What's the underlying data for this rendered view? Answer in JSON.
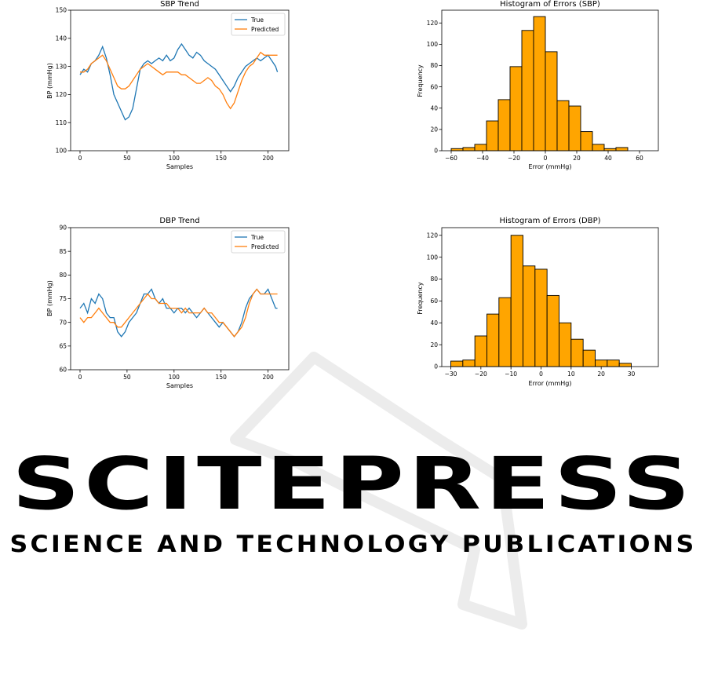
{
  "watermark": {
    "brand": "SCITEPRESS",
    "tagline": "SCIENCE AND TECHNOLOGY PUBLICATIONS",
    "color": "#e6e6e6"
  },
  "colors": {
    "true_series": "#1f77b4",
    "predicted_series": "#ff7f0e",
    "hist_bar": "#ffa500",
    "hist_edge": "#000000"
  },
  "chart_data": [
    {
      "id": "sbp-trend",
      "type": "line",
      "title": "SBP Trend",
      "xlabel": "Samples",
      "ylabel": "BP (mmHg)",
      "xlim": [
        -10,
        222
      ],
      "ylim": [
        100,
        150
      ],
      "xticks": [
        0,
        50,
        100,
        150,
        200
      ],
      "yticks": [
        100,
        110,
        120,
        130,
        140,
        150
      ],
      "legend": "top-right",
      "series": [
        {
          "name": "True",
          "color": "#1f77b4",
          "x": [
            0,
            4,
            8,
            12,
            16,
            20,
            24,
            28,
            32,
            36,
            40,
            44,
            48,
            52,
            56,
            60,
            64,
            68,
            72,
            76,
            80,
            84,
            88,
            92,
            96,
            100,
            104,
            108,
            112,
            116,
            120,
            124,
            128,
            132,
            136,
            140,
            144,
            148,
            152,
            156,
            160,
            164,
            168,
            172,
            176,
            180,
            184,
            188,
            192,
            196,
            200,
            204,
            208,
            210
          ],
          "y": [
            127,
            129,
            128,
            131,
            132,
            134,
            137,
            133,
            127,
            120,
            117,
            114,
            111,
            112,
            115,
            122,
            129,
            131,
            132,
            131,
            132,
            133,
            132,
            134,
            132,
            133,
            136,
            138,
            136,
            134,
            133,
            135,
            134,
            132,
            131,
            130,
            129,
            127,
            125,
            123,
            121,
            123,
            126,
            128,
            130,
            131,
            132,
            133,
            132,
            133,
            134,
            132,
            130,
            128
          ]
        },
        {
          "name": "Predicted",
          "color": "#ff7f0e",
          "x": [
            0,
            4,
            8,
            12,
            16,
            20,
            24,
            28,
            32,
            36,
            40,
            44,
            48,
            52,
            56,
            60,
            64,
            68,
            72,
            76,
            80,
            84,
            88,
            92,
            96,
            100,
            104,
            108,
            112,
            116,
            120,
            124,
            128,
            132,
            136,
            140,
            144,
            148,
            152,
            156,
            160,
            164,
            168,
            172,
            176,
            180,
            184,
            188,
            192,
            196,
            200,
            204,
            208,
            210
          ],
          "y": [
            128,
            128,
            129,
            131,
            132,
            133,
            134,
            132,
            129,
            126,
            123,
            122,
            122,
            123,
            125,
            127,
            129,
            130,
            131,
            130,
            129,
            128,
            127,
            128,
            128,
            128,
            128,
            127,
            127,
            126,
            125,
            124,
            124,
            125,
            126,
            125,
            123,
            122,
            120,
            117,
            115,
            117,
            121,
            125,
            128,
            130,
            131,
            133,
            135,
            134,
            134,
            134,
            134,
            134
          ]
        }
      ]
    },
    {
      "id": "sbp-hist",
      "type": "bar",
      "title": "Histogram of Errors (SBP)",
      "xlabel": "Error (mmHg)",
      "ylabel": "Frequency",
      "xlim": [
        -66,
        72
      ],
      "ylim": [
        0,
        132
      ],
      "xticks": [
        -60,
        -40,
        -20,
        0,
        20,
        40,
        60
      ],
      "ytick_labels": [
        "0",
        "20",
        "40",
        "60",
        "80",
        "100",
        "120"
      ],
      "yticks": [
        0,
        20,
        40,
        60,
        80,
        100,
        120
      ],
      "bin_edges": [
        -60,
        -52.5,
        -45,
        -37.5,
        -30,
        -22.5,
        -15,
        -7.5,
        0,
        7.5,
        15,
        22.5,
        30,
        37.5,
        45,
        52.5,
        60,
        67.5
      ],
      "values": [
        2,
        3,
        6,
        28,
        48,
        79,
        113,
        126,
        93,
        47,
        42,
        18,
        6,
        2,
        3,
        0,
        0
      ]
    },
    {
      "id": "dbp-trend",
      "type": "line",
      "title": "DBP Trend",
      "xlabel": "Samples",
      "ylabel": "BP (mmHg)",
      "xlim": [
        -10,
        222
      ],
      "ylim": [
        60,
        90
      ],
      "xticks": [
        0,
        50,
        100,
        150,
        200
      ],
      "yticks": [
        60,
        65,
        70,
        75,
        80,
        85,
        90
      ],
      "legend": "top-right",
      "series": [
        {
          "name": "True",
          "color": "#1f77b4",
          "x": [
            0,
            4,
            8,
            12,
            16,
            20,
            24,
            28,
            32,
            36,
            40,
            44,
            48,
            52,
            56,
            60,
            64,
            68,
            72,
            76,
            80,
            84,
            88,
            92,
            96,
            100,
            104,
            108,
            112,
            116,
            120,
            124,
            128,
            132,
            136,
            140,
            144,
            148,
            152,
            156,
            160,
            164,
            168,
            172,
            176,
            180,
            184,
            188,
            192,
            196,
            200,
            204,
            208,
            210
          ],
          "y": [
            73,
            74,
            72,
            75,
            74,
            76,
            75,
            72,
            71,
            71,
            68,
            67,
            68,
            70,
            71,
            72,
            74,
            76,
            76,
            77,
            75,
            74,
            75,
            73,
            73,
            72,
            73,
            73,
            72,
            73,
            72,
            71,
            72,
            73,
            72,
            71,
            70,
            69,
            70,
            69,
            68,
            67,
            68,
            70,
            73,
            75,
            76,
            77,
            76,
            76,
            77,
            75,
            73,
            73
          ],
          "name_label": "True"
        },
        {
          "name": "Predicted",
          "color": "#ff7f0e",
          "x": [
            0,
            4,
            8,
            12,
            16,
            20,
            24,
            28,
            32,
            36,
            40,
            44,
            48,
            52,
            56,
            60,
            64,
            68,
            72,
            76,
            80,
            84,
            88,
            92,
            96,
            100,
            104,
            108,
            112,
            116,
            120,
            124,
            128,
            132,
            136,
            140,
            144,
            148,
            152,
            156,
            160,
            164,
            168,
            172,
            176,
            180,
            184,
            188,
            192,
            196,
            200,
            204,
            208,
            210
          ],
          "y": [
            71,
            70,
            71,
            71,
            72,
            73,
            72,
            71,
            70,
            70,
            69,
            69,
            70,
            71,
            72,
            73,
            74,
            75,
            76,
            75,
            75,
            74,
            74,
            74,
            73,
            73,
            73,
            72,
            73,
            72,
            72,
            72,
            72,
            73,
            72,
            72,
            71,
            70,
            70,
            69,
            68,
            67,
            68,
            69,
            71,
            74,
            76,
            77,
            76,
            76,
            76,
            76,
            76,
            76
          ]
        }
      ]
    },
    {
      "id": "dbp-hist",
      "type": "bar",
      "title": "Histogram of Errors (DBP)",
      "xlabel": "Error (mmHg)",
      "ylabel": "Frequency",
      "xlim": [
        -33,
        39
      ],
      "ylim": [
        0,
        127
      ],
      "xticks": [
        -30,
        -20,
        -10,
        0,
        10,
        20,
        30
      ],
      "ytick_labels": [
        "0",
        "20",
        "40",
        "60",
        "80",
        "100",
        "120"
      ],
      "yticks": [
        0,
        20,
        40,
        60,
        80,
        100,
        120
      ],
      "bin_edges": [
        -30,
        -26,
        -22,
        -18,
        -14,
        -10,
        -6,
        -2,
        2,
        6,
        10,
        14,
        18,
        22,
        26,
        30,
        34,
        38
      ],
      "values": [
        5,
        6,
        28,
        48,
        63,
        120,
        92,
        89,
        65,
        40,
        25,
        15,
        6,
        6,
        3,
        0,
        0
      ]
    }
  ]
}
